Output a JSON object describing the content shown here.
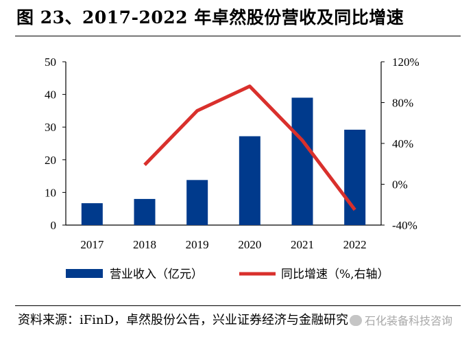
{
  "title": "图 23、2017-2022 年卓然股份营收及同比增速",
  "source": "资料来源：iFinD，卓然股份公告，兴业证券经济与金融研究",
  "watermark": "石化装备科技咨询",
  "colors": {
    "bar": "#003A8C",
    "line": "#D9302C",
    "rule": "#000000"
  },
  "chart_data": {
    "type": "bar+line",
    "categories": [
      "2017",
      "2018",
      "2019",
      "2020",
      "2021",
      "2022"
    ],
    "series": [
      {
        "name": "营业收入（亿元）",
        "type": "bar",
        "axis": "left",
        "values": [
          6.7,
          8.0,
          13.8,
          27.2,
          39.0,
          29.2
        ]
      },
      {
        "name": "同比增速（%,右轴）",
        "type": "line",
        "axis": "right",
        "values": [
          null,
          19,
          72,
          96,
          43,
          -25
        ]
      }
    ],
    "yleft": {
      "range": [
        0,
        50
      ],
      "ticks": [
        "0",
        "10",
        "20",
        "30",
        "40",
        "50"
      ]
    },
    "yright": {
      "range": [
        -40,
        120
      ],
      "ticks": [
        "-40%",
        "0%",
        "40%",
        "80%",
        "120%"
      ]
    },
    "legend": [
      "营业收入（亿元）",
      "同比增速（%,右轴）"
    ],
    "legend_position": "bottom",
    "grid": false
  }
}
